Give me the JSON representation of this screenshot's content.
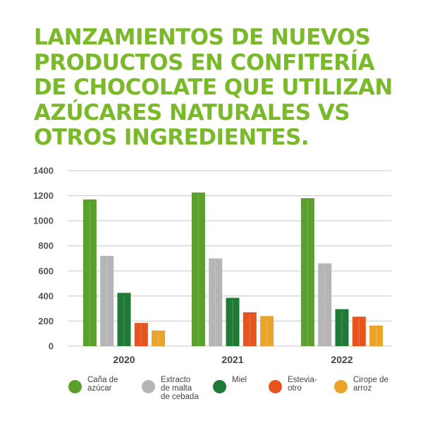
{
  "title_lines": [
    "LANZAMIENTOS DE NUEVOS",
    "PRODUCTOS EN CONFITERÍA",
    "DE CHOCOLATE QUE UTILIZAN",
    "AZÚCARES NATURALES VS",
    "OTROS INGREDIENTES."
  ],
  "chart_data": {
    "type": "bar",
    "title": "LANZAMIENTOS DE NUEVOS PRODUCTOS EN CONFITERÍA DE CHOCOLATE QUE UTILIZAN AZÚCARES NATURALES VS OTROS INGREDIENTES.",
    "categories": [
      "2020",
      "2021",
      "2022"
    ],
    "series": [
      {
        "name": "Caña de\nazúcar",
        "values": [
          1170,
          1225,
          1180
        ],
        "color": "#5aa02c"
      },
      {
        "name": "Extracto\nde malta\nde cebada",
        "values": [
          720,
          700,
          660
        ],
        "color": "#b5b5b5"
      },
      {
        "name": "Miel",
        "values": [
          425,
          385,
          295
        ],
        "color": "#1e7a35"
      },
      {
        "name": "Estevia-\notro",
        "values": [
          185,
          270,
          235
        ],
        "color": "#e8541e"
      },
      {
        "name": "Cirope de\narroz",
        "values": [
          125,
          240,
          165
        ],
        "color": "#e9a42a"
      }
    ],
    "y_ticks": [
      0,
      200,
      400,
      600,
      800,
      1000,
      1200,
      1400
    ],
    "ylim": [
      0,
      1400
    ],
    "grid": true,
    "legend_position": "bottom"
  }
}
